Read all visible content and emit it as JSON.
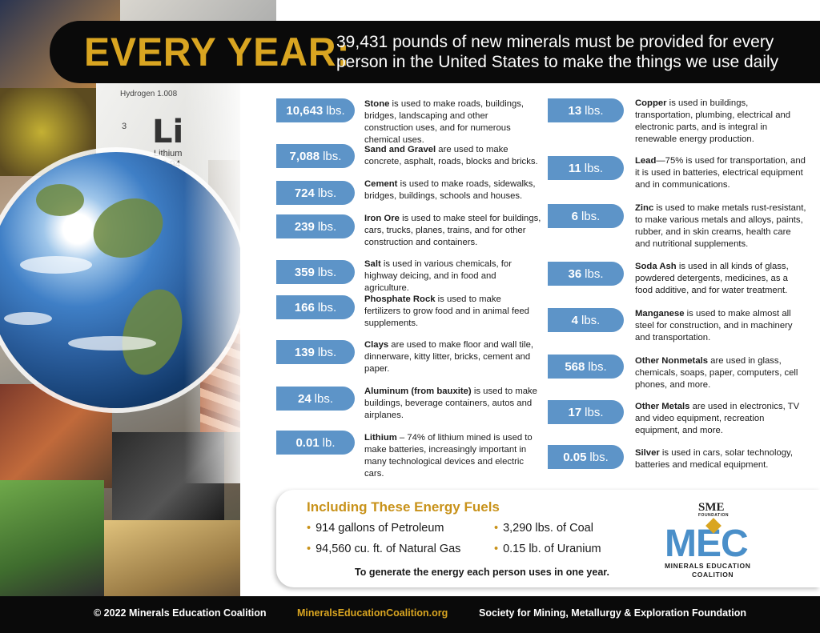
{
  "header": {
    "every_year": "EVERY YEAR:",
    "tagline": "39,431 pounds of new minerals must be provided for every person in the United States to make the things we use daily"
  },
  "collage": {
    "element_symbol": "Li",
    "element_number": "3",
    "element_name": "Lithium",
    "element_weight": "6.94",
    "hydrogen_label": "Hydrogen 1.008"
  },
  "left_items": [
    {
      "amount": "10,643",
      "unit": "lbs.",
      "name": "Stone",
      "text": " is used to make roads, buildings, bridges, landscaping and other construction uses, and for numerous chemical uses."
    },
    {
      "amount": "7,088",
      "unit": "lbs.",
      "name": "Sand and Gravel",
      "text": " are used to make concrete, asphalt, roads, blocks and bricks."
    },
    {
      "amount": "724",
      "unit": "lbs.",
      "name": "Cement",
      "text": " is used to make roads, sidewalks, bridges, buildings, schools and houses."
    },
    {
      "amount": "239",
      "unit": "lbs.",
      "name": "Iron Ore",
      "text": " is used to make steel for buildings, cars, trucks, planes, trains, and for other construction and containers."
    },
    {
      "amount": "359",
      "unit": "lbs.",
      "name": "Salt",
      "text": " is used in various chemicals, for highway deicing, and in food and agriculture."
    },
    {
      "amount": "166",
      "unit": "lbs.",
      "name": "Phosphate Rock",
      "text": " is used to make fertilizers to grow food and in animal feed supplements."
    },
    {
      "amount": "139",
      "unit": "lbs.",
      "name": "Clays",
      "text": " are used to make floor and wall tile, dinnerware, kitty litter, bricks, cement and paper."
    },
    {
      "amount": "24",
      "unit": "lbs.",
      "name": "Aluminum (from bauxite)",
      "text": " is used to make buildings, beverage containers, autos and airplanes."
    },
    {
      "amount": "0.01",
      "unit": "lb.",
      "name": "Lithium",
      "text": " – 74% of lithium mined is used to make batteries, increasingly important in many technological devices and electric cars."
    }
  ],
  "right_items": [
    {
      "amount": "13",
      "unit": "lbs.",
      "name": "Copper",
      "text": " is used in buildings, transportation, plumbing, electrical and electronic parts, and is integral in renewable energy production."
    },
    {
      "amount": "11",
      "unit": "lbs.",
      "name": "Lead",
      "text": "—75% is used for transportation, and it is used in batteries, electrical equipment and in communications."
    },
    {
      "amount": "6",
      "unit": "lbs.",
      "name": "Zinc",
      "text": " is used to make metals rust-resistant, to make various metals and alloys, paints, rubber, and in skin creams, health care and nutritional supplements."
    },
    {
      "amount": "36",
      "unit": "lbs.",
      "name": "Soda Ash",
      "text": " is used in all kinds of glass, powdered detergents, medicines, as a food additive, and for water treatment."
    },
    {
      "amount": "4",
      "unit": "lbs.",
      "name": "Manganese",
      "text": " is used to make almost all steel for construction, and in machinery and transportation."
    },
    {
      "amount": "568",
      "unit": "lbs.",
      "name": "Other Nonmetals",
      "text": " are used in glass, chemicals, soaps, paper, computers, cell phones, and more."
    },
    {
      "amount": "17",
      "unit": "lbs.",
      "name": "Other Metals",
      "text": " are used in electronics, TV and video equipment, recreation equipment, and more."
    },
    {
      "amount": "0.05",
      "unit": "lbs.",
      "name": "Silver",
      "text": " is used in cars, solar technology, batteries and medical equipment."
    }
  ],
  "energy": {
    "title": "Including These Energy Fuels",
    "fuels": [
      "914 gallons of Petroleum",
      "3,290 lbs. of Coal",
      "94,560 cu. ft. of Natural Gas",
      "0.15 lb. of Uranium"
    ],
    "note": "To generate the energy each person uses in one year."
  },
  "logo": {
    "sme": "SME",
    "sme_sub": "FOUNDATION",
    "mec": "MEC",
    "line1": "MINERALS EDUCATION",
    "line2": "COALITION"
  },
  "footer": {
    "copyright": "© 2022 Minerals Education Coalition",
    "website": "MineralsEducationCoalition.org",
    "society": "Society for Mining, Metallurgy & Exploration Foundation"
  },
  "colors": {
    "gold": "#d9a521",
    "pill_blue": "#5d94c8",
    "mec_blue": "#4a8fc9",
    "black": "#0a0a0a"
  }
}
